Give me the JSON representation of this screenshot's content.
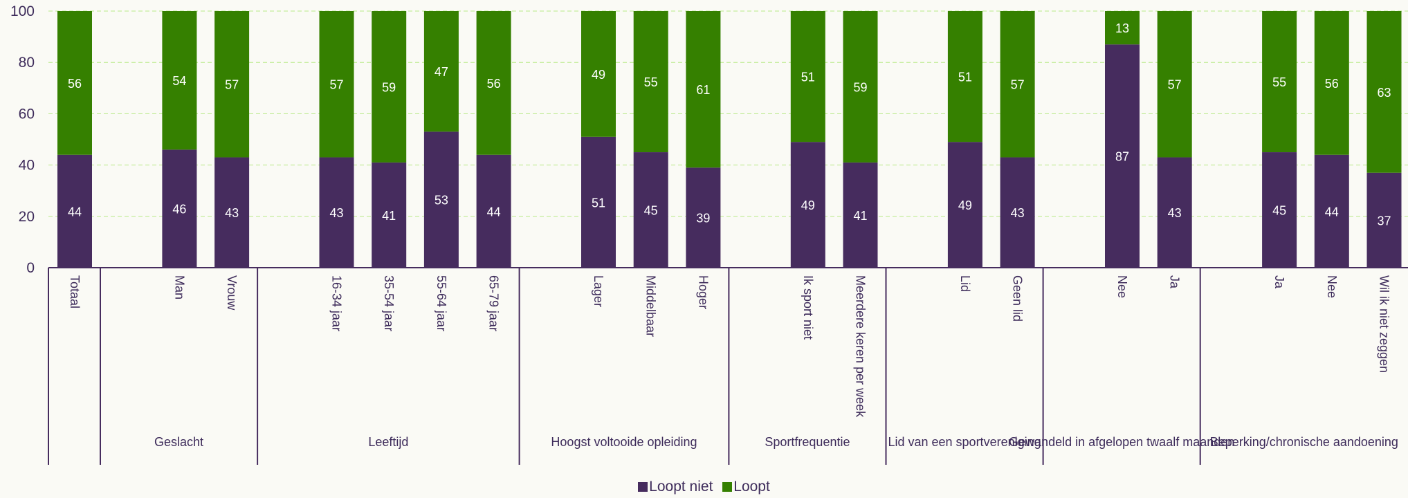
{
  "chart_data": {
    "type": "bar",
    "stacked": true,
    "ylim": [
      0,
      100
    ],
    "yticks": [
      0,
      20,
      40,
      60,
      80,
      100
    ],
    "grid": true,
    "legend_position": "bottom-center",
    "colors": {
      "Loopt niet": "#462c5e",
      "Loopt": "#358000",
      "grid": "#b8e986"
    },
    "groups": [
      {
        "name": "",
        "categories": [
          "Totaal"
        ]
      },
      {
        "name": "Geslacht",
        "categories": [
          "Man",
          "Vrouw"
        ]
      },
      {
        "name": "Leeftijd",
        "categories": [
          "16-34 jaar",
          "35-54 jaar",
          "55-64 jaar",
          "65-79 jaar"
        ]
      },
      {
        "name": "Hoogst voltooide opleiding",
        "categories": [
          "Lager",
          "Middelbaar",
          "Hoger"
        ]
      },
      {
        "name": "Sportfrequentie",
        "categories": [
          "Ik sport niet",
          "Meerdere keren per week"
        ]
      },
      {
        "name": "Lid van een sportvereniging",
        "categories": [
          "Lid",
          "Geen lid"
        ]
      },
      {
        "name": "Gewandeld in afgelopen twaalf maanden",
        "categories": [
          "Nee",
          "Ja"
        ]
      },
      {
        "name": "Beperking/chronische aandoening",
        "categories": [
          "Ja",
          "Nee",
          "Wil ik niet zeggen"
        ]
      }
    ],
    "series": [
      {
        "name": "Loopt niet",
        "values": [
          44,
          46,
          43,
          43,
          41,
          53,
          44,
          51,
          45,
          39,
          49,
          41,
          49,
          43,
          87,
          43,
          45,
          44,
          37
        ]
      },
      {
        "name": "Loopt",
        "values": [
          56,
          54,
          57,
          57,
          59,
          47,
          56,
          49,
          55,
          61,
          51,
          59,
          51,
          57,
          13,
          57,
          55,
          56,
          63
        ]
      }
    ]
  }
}
